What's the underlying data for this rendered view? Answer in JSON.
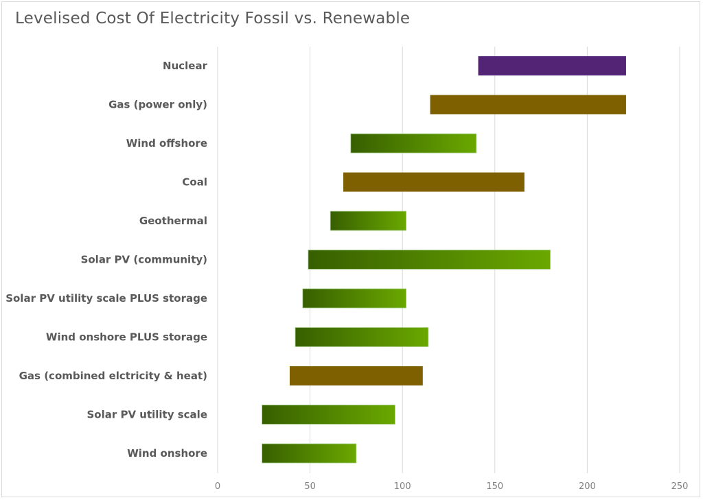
{
  "chart_data": {
    "type": "bar",
    "orientation": "horizontal",
    "stacked_floating": true,
    "title": "Levelised Cost Of Electricity Fossil vs. Renewable",
    "xlabel": "",
    "ylabel": "",
    "xlim": [
      0,
      250
    ],
    "xticks": [
      0,
      50,
      100,
      150,
      200,
      250
    ],
    "grid": true,
    "legend": "none",
    "categories": [
      "Nuclear",
      "Gas (power only)",
      "Wind offshore",
      "Coal",
      "Geothermal",
      "Solar PV (community)",
      "Solar PV utility scale PLUS storage",
      "Wind onshore PLUS storage",
      "Gas (combined elctricity & heat)",
      "Solar PV utility scale",
      "Wind onshore"
    ],
    "ranges": [
      [
        141,
        221
      ],
      [
        115,
        221
      ],
      [
        72,
        140
      ],
      [
        68,
        166
      ],
      [
        61,
        102
      ],
      [
        49,
        180
      ],
      [
        46,
        102
      ],
      [
        42,
        114
      ],
      [
        39,
        111
      ],
      [
        24,
        96
      ],
      [
        24,
        75
      ]
    ],
    "kinds": [
      "nuclear",
      "fossil",
      "renewable",
      "fossil",
      "renewable",
      "renewable",
      "renewable",
      "renewable",
      "fossil",
      "renewable",
      "renewable"
    ],
    "colors": {
      "nuclear": "#532375",
      "fossil": "#7f6000",
      "renewable_start": "#375f00",
      "renewable_end": "#6aa800",
      "grid": "#d9d9d9"
    }
  }
}
